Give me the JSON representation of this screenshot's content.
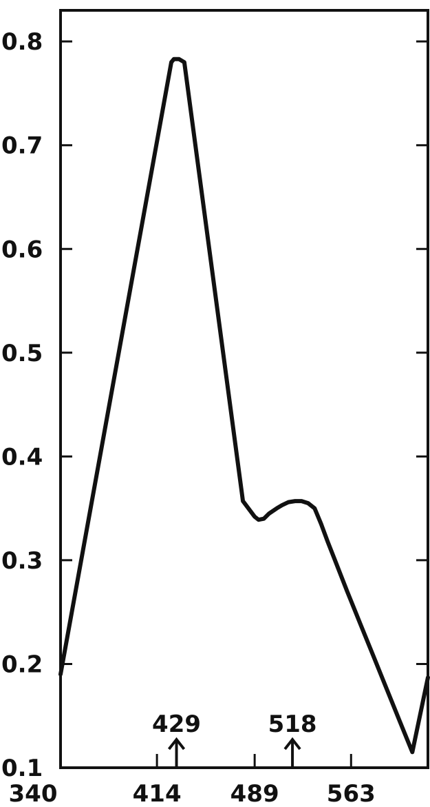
{
  "chart_data": {
    "type": "line",
    "title": "",
    "xlabel": "",
    "ylabel": "",
    "xlim": [
      340,
      622
    ],
    "ylim": [
      0.1,
      0.83
    ],
    "x_ticks": [
      340,
      414,
      489,
      563
    ],
    "x_tick_labels": [
      "340",
      "414",
      "489",
      "563"
    ],
    "y_ticks": [
      0.1,
      0.2,
      0.3,
      0.4,
      0.5,
      0.6,
      0.7,
      0.8
    ],
    "y_tick_labels": [
      "0.1",
      "0.2",
      "0.3",
      "0.4",
      "0.5",
      "0.6",
      "0.7",
      "0.8"
    ],
    "grid": false,
    "series": [
      {
        "x": [
          340,
          425,
          427,
          431,
          435,
          480,
          489,
          492,
          496,
          500,
          506,
          510,
          515,
          520,
          525,
          530,
          535,
          540,
          545,
          550,
          560,
          570,
          580,
          590,
          600,
          610,
          622
        ],
        "y": [
          0.19,
          0.78,
          0.783,
          0.783,
          0.78,
          0.357,
          0.342,
          0.339,
          0.34,
          0.345,
          0.35,
          0.353,
          0.356,
          0.357,
          0.357,
          0.355,
          0.35,
          0.335,
          0.318,
          0.302,
          0.27,
          0.239,
          0.208,
          0.177,
          0.146,
          0.115,
          0.187
        ]
      }
    ],
    "annotations": [
      {
        "text": "429",
        "x": 429,
        "y": 0.1,
        "arrow": "up"
      },
      {
        "text": "518",
        "x": 518,
        "y": 0.1,
        "arrow": "up"
      }
    ],
    "line_color": "#111111"
  }
}
